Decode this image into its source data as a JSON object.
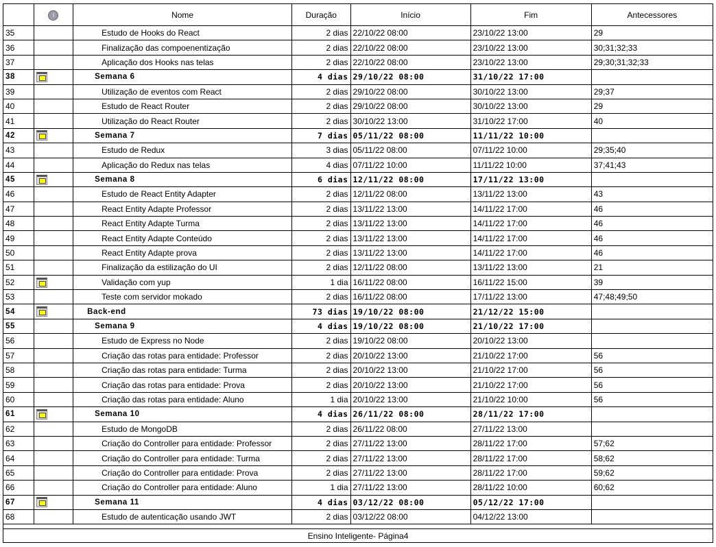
{
  "header": {
    "info_icon": "info-icon",
    "name": "Nome",
    "duration": "Duração",
    "start": "Início",
    "end": "Fim",
    "predecessors": "Antecessores"
  },
  "rows": [
    {
      "id": "35",
      "icon": false,
      "level": 3,
      "bold": false,
      "name": "Estudo de Hooks do React",
      "duration": "2 dias",
      "start": "22/10/22 08:00",
      "end": "23/10/22 13:00",
      "pred": "29"
    },
    {
      "id": "36",
      "icon": false,
      "level": 3,
      "bold": false,
      "name": "Finalização das compoenentização",
      "duration": "2 dias",
      "start": "22/10/22 08:00",
      "end": "23/10/22 13:00",
      "pred": "30;31;32;33"
    },
    {
      "id": "37",
      "icon": false,
      "level": 3,
      "bold": false,
      "name": "Aplicação dos Hooks nas telas",
      "duration": "2 dias",
      "start": "22/10/22 08:00",
      "end": "23/10/22 13:00",
      "pred": "29;30;31;32;33"
    },
    {
      "id": "38",
      "icon": true,
      "level": 2,
      "bold": true,
      "name": "Semana 6",
      "duration": "4 dias",
      "start": "29/10/22 08:00",
      "end": "31/10/22 17:00",
      "pred": ""
    },
    {
      "id": "39",
      "icon": false,
      "level": 3,
      "bold": false,
      "name": "Utilização de eventos com React",
      "duration": "2 dias",
      "start": "29/10/22 08:00",
      "end": "30/10/22 13:00",
      "pred": "29;37"
    },
    {
      "id": "40",
      "icon": false,
      "level": 3,
      "bold": false,
      "name": "Estudo de React Router",
      "duration": "2 dias",
      "start": "29/10/22 08:00",
      "end": "30/10/22 13:00",
      "pred": "29"
    },
    {
      "id": "41",
      "icon": false,
      "level": 3,
      "bold": false,
      "name": "Utilização do React Router",
      "duration": "2 dias",
      "start": "30/10/22 13:00",
      "end": "31/10/22 17:00",
      "pred": "40"
    },
    {
      "id": "42",
      "icon": true,
      "level": 2,
      "bold": true,
      "name": "Semana 7",
      "duration": "7 dias",
      "start": "05/11/22 08:00",
      "end": "11/11/22 10:00",
      "pred": ""
    },
    {
      "id": "43",
      "icon": false,
      "level": 3,
      "bold": false,
      "name": "Estudo de Redux",
      "duration": "3 dias",
      "start": "05/11/22 08:00",
      "end": "07/11/22 10:00",
      "pred": "29;35;40"
    },
    {
      "id": "44",
      "icon": false,
      "level": 3,
      "bold": false,
      "name": "Aplicação do Redux nas telas",
      "duration": "4 dias",
      "start": "07/11/22 10:00",
      "end": "11/11/22 10:00",
      "pred": "37;41;43"
    },
    {
      "id": "45",
      "icon": true,
      "level": 2,
      "bold": true,
      "name": "Semana 8",
      "duration": "6 dias",
      "start": "12/11/22 08:00",
      "end": "17/11/22 13:00",
      "pred": ""
    },
    {
      "id": "46",
      "icon": false,
      "level": 3,
      "bold": false,
      "name": "Estudo de React Entity Adapter",
      "duration": "2 dias",
      "start": "12/11/22 08:00",
      "end": "13/11/22 13:00",
      "pred": "43"
    },
    {
      "id": "47",
      "icon": false,
      "level": 3,
      "bold": false,
      "name": "React Entity Adapte Professor",
      "duration": "2 dias",
      "start": "13/11/22 13:00",
      "end": "14/11/22 17:00",
      "pred": "46"
    },
    {
      "id": "48",
      "icon": false,
      "level": 3,
      "bold": false,
      "name": "React Entity Adapte Turma",
      "duration": "2 dias",
      "start": "13/11/22 13:00",
      "end": "14/11/22 17:00",
      "pred": "46"
    },
    {
      "id": "49",
      "icon": false,
      "level": 3,
      "bold": false,
      "name": "React Entity Adapte Conteúdo",
      "duration": "2 dias",
      "start": "13/11/22 13:00",
      "end": "14/11/22 17:00",
      "pred": "46"
    },
    {
      "id": "50",
      "icon": false,
      "level": 3,
      "bold": false,
      "name": "React Entity Adapte prova",
      "duration": "2 dias",
      "start": "13/11/22 13:00",
      "end": "14/11/22 17:00",
      "pred": "46"
    },
    {
      "id": "51",
      "icon": false,
      "level": 3,
      "bold": false,
      "name": "Finalização da estilização do UI",
      "duration": "2 dias",
      "start": "12/11/22 08:00",
      "end": "13/11/22 13:00",
      "pred": "21"
    },
    {
      "id": "52",
      "icon": true,
      "level": 3,
      "bold": false,
      "name": "Validação com yup",
      "duration": "1 dia",
      "start": "16/11/22 08:00",
      "end": "16/11/22 15:00",
      "pred": "39"
    },
    {
      "id": "53",
      "icon": false,
      "level": 3,
      "bold": false,
      "name": "Teste com servidor mokado",
      "duration": "2 dias",
      "start": "16/11/22 08:00",
      "end": "17/11/22 13:00",
      "pred": "47;48;49;50"
    },
    {
      "id": "54",
      "icon": true,
      "level": 1,
      "bold": true,
      "name": "Back-end",
      "duration": "73 dias",
      "start": "19/10/22 08:00",
      "end": "21/12/22 15:00",
      "pred": ""
    },
    {
      "id": "55",
      "icon": false,
      "level": 2,
      "bold": true,
      "name": "Semana 9",
      "duration": "4 dias",
      "start": "19/10/22 08:00",
      "end": "21/10/22 17:00",
      "pred": ""
    },
    {
      "id": "56",
      "icon": false,
      "level": 3,
      "bold": false,
      "name": "Estudo de Express no Node",
      "duration": "2 dias",
      "start": "19/10/22 08:00",
      "end": "20/10/22 13:00",
      "pred": ""
    },
    {
      "id": "57",
      "icon": false,
      "level": 3,
      "bold": false,
      "name": "Criação das rotas para entidade: Professor",
      "duration": "2 dias",
      "start": "20/10/22 13:00",
      "end": "21/10/22 17:00",
      "pred": "56"
    },
    {
      "id": "58",
      "icon": false,
      "level": 3,
      "bold": false,
      "name": "Criação das rotas para entidade: Turma",
      "duration": "2 dias",
      "start": "20/10/22 13:00",
      "end": "21/10/22 17:00",
      "pred": "56"
    },
    {
      "id": "59",
      "icon": false,
      "level": 3,
      "bold": false,
      "name": "Criação das rotas para entidade: Prova",
      "duration": "2 dias",
      "start": "20/10/22 13:00",
      "end": "21/10/22 17:00",
      "pred": "56"
    },
    {
      "id": "60",
      "icon": false,
      "level": 3,
      "bold": false,
      "name": "Criação das rotas para entidade: Aluno",
      "duration": "1 dia",
      "start": "20/10/22 13:00",
      "end": "21/10/22 10:00",
      "pred": "56"
    },
    {
      "id": "61",
      "icon": true,
      "level": 2,
      "bold": true,
      "name": "Semana 10",
      "duration": "4 dias",
      "start": "26/11/22 08:00",
      "end": "28/11/22 17:00",
      "pred": ""
    },
    {
      "id": "62",
      "icon": false,
      "level": 3,
      "bold": false,
      "name": "Estudo de MongoDB",
      "duration": "2 dias",
      "start": "26/11/22 08:00",
      "end": "27/11/22 13:00",
      "pred": ""
    },
    {
      "id": "63",
      "icon": false,
      "level": 3,
      "bold": false,
      "name": "Criação do Controller para entidade: Professor",
      "duration": "2 dias",
      "start": "27/11/22 13:00",
      "end": "28/11/22 17:00",
      "pred": "57;62"
    },
    {
      "id": "64",
      "icon": false,
      "level": 3,
      "bold": false,
      "name": "Criação do Controller para entidade: Turma",
      "duration": "2 dias",
      "start": "27/11/22 13:00",
      "end": "28/11/22 17:00",
      "pred": "58;62"
    },
    {
      "id": "65",
      "icon": false,
      "level": 3,
      "bold": false,
      "name": "Criação do Controller para entidade: Prova",
      "duration": "2 dias",
      "start": "27/11/22 13:00",
      "end": "28/11/22 17:00",
      "pred": "59;62"
    },
    {
      "id": "66",
      "icon": false,
      "level": 3,
      "bold": false,
      "name": "Criação do Controller para entidade: Aluno",
      "duration": "1 dia",
      "start": "27/11/22 13:00",
      "end": "28/11/22 10:00",
      "pred": "60;62"
    },
    {
      "id": "67",
      "icon": true,
      "level": 2,
      "bold": true,
      "name": "Semana 11",
      "duration": "4 dias",
      "start": "03/12/22 08:00",
      "end": "05/12/22 17:00",
      "pred": ""
    },
    {
      "id": "68",
      "icon": false,
      "level": 3,
      "bold": false,
      "name": "Estudo de autenticação usando JWT",
      "duration": "2 dias",
      "start": "03/12/22 08:00",
      "end": "04/12/22 13:00",
      "pred": ""
    }
  ],
  "footer": {
    "text": "Ensino Inteligente- Página4"
  }
}
